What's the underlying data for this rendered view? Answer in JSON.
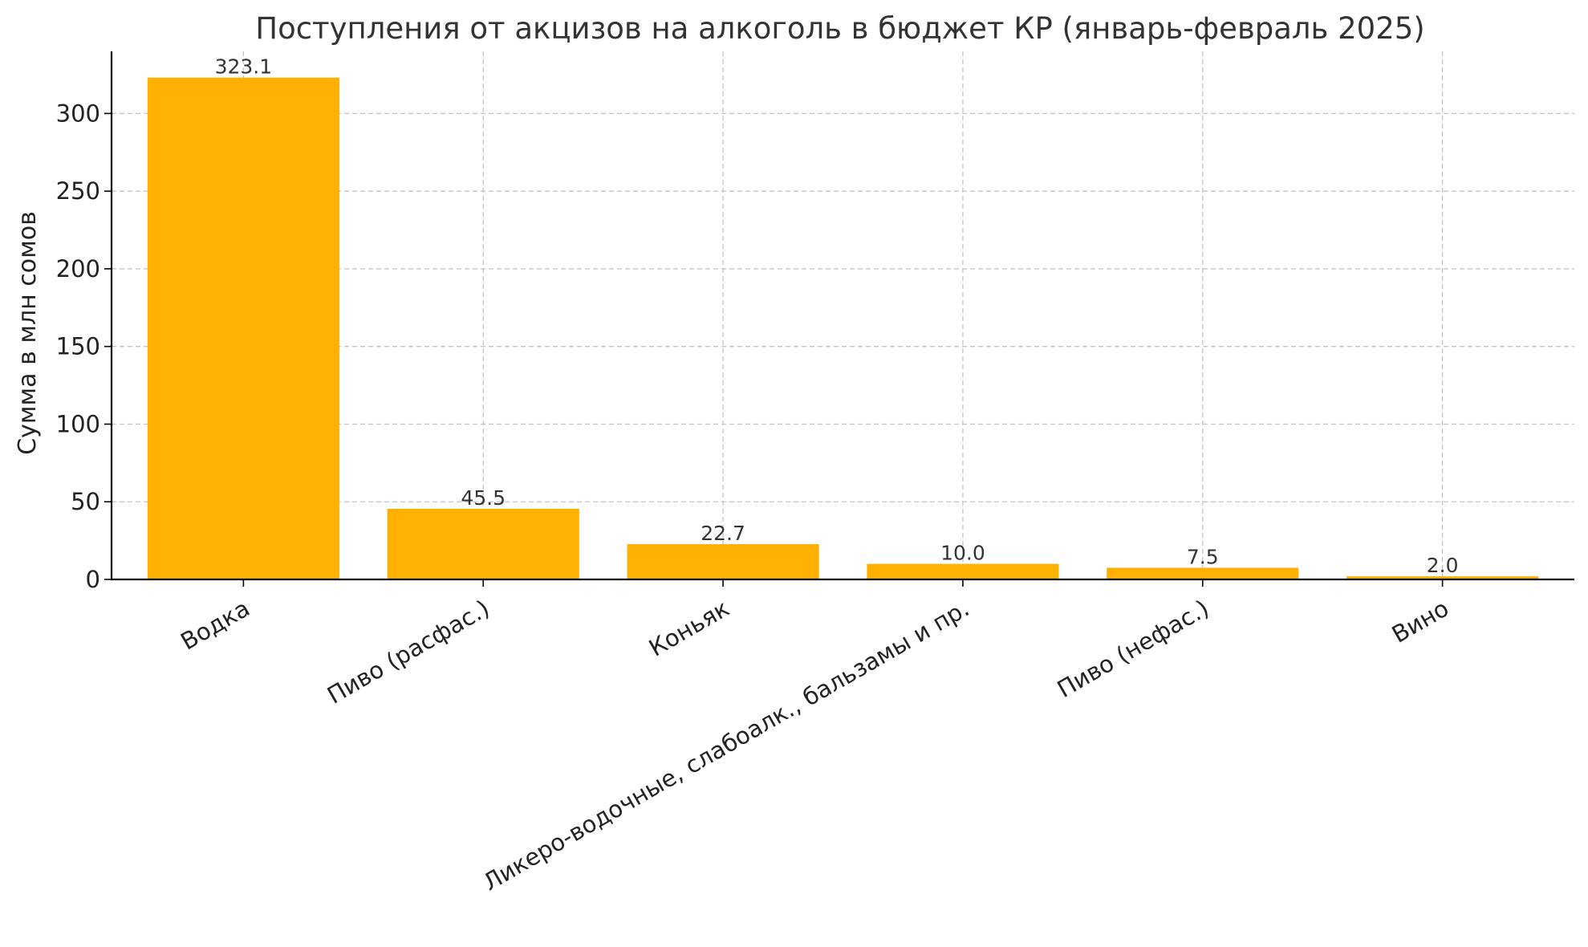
{
  "chart_data": {
    "type": "bar",
    "title": "Поступления от акцизов на алкоголь в бюджет КР (январь-февраль 2025)",
    "xlabel": "",
    "ylabel": "Сумма в млн сомов",
    "categories": [
      "Водка",
      "Пиво (расфас.)",
      "Коньяк",
      "Ликеро-водочные, слабоалк., бальзамы и пр.",
      "Пиво (нефас.)",
      "Вино"
    ],
    "values": [
      323.1,
      45.5,
      22.7,
      10.0,
      7.5,
      2.0
    ],
    "data_labels": [
      "323.1",
      "45.5",
      "22.7",
      "10.0",
      "7.5",
      "2.0"
    ],
    "ylim": [
      0,
      340
    ],
    "yticks": [
      0,
      50,
      100,
      150,
      200,
      250,
      300
    ],
    "grid": true,
    "legend": "none",
    "bar_color": "#FFB000"
  }
}
